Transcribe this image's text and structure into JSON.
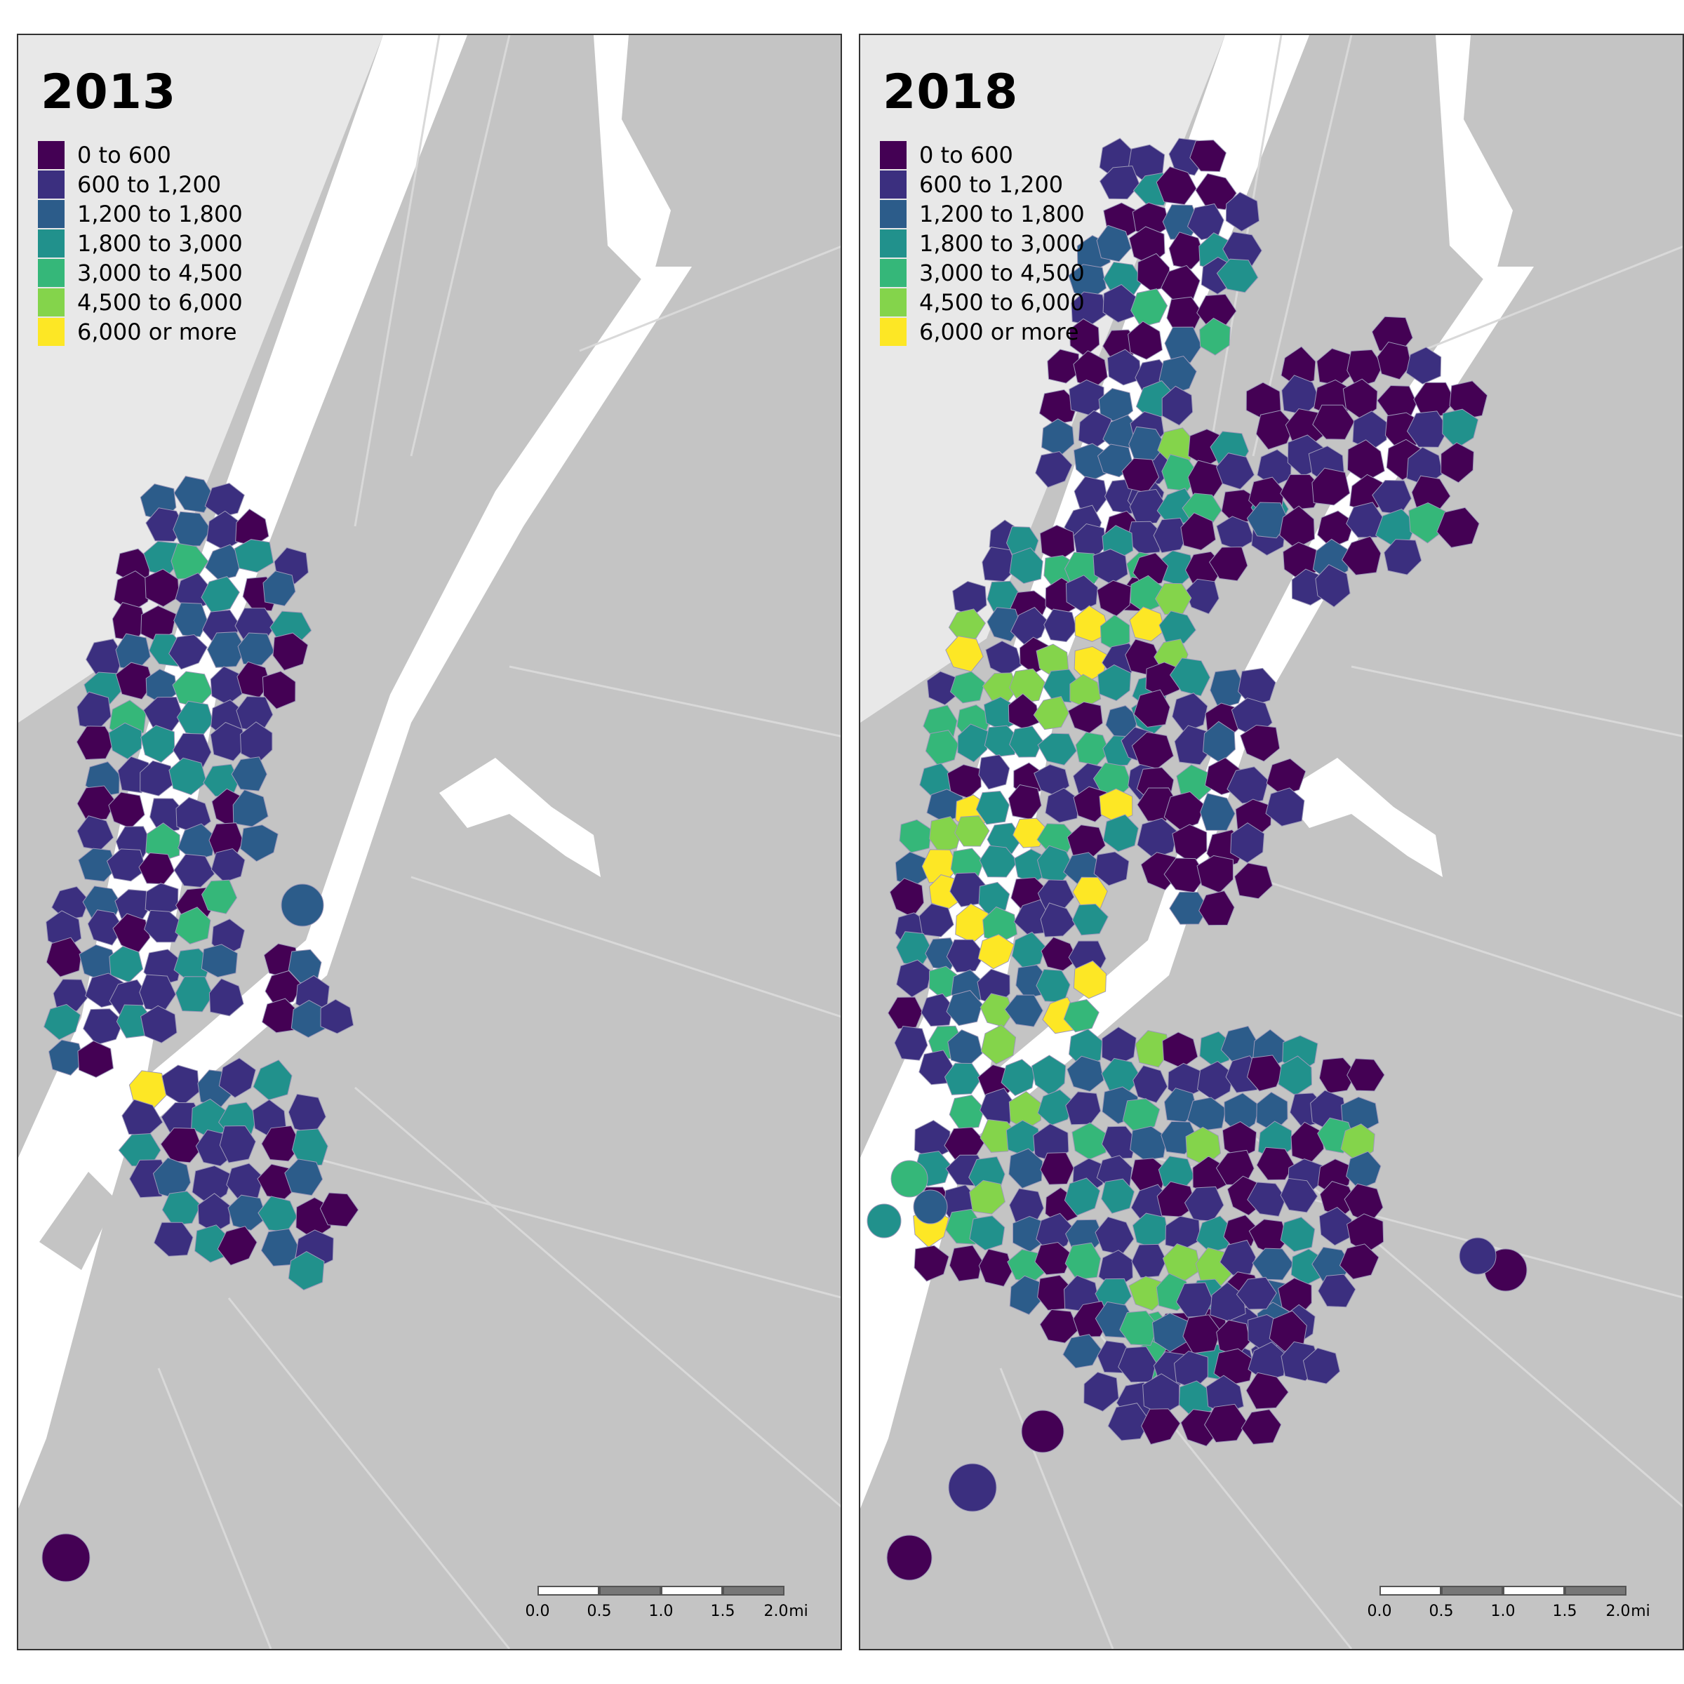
{
  "panels": [
    {
      "year": "2013"
    },
    {
      "year": "2018"
    }
  ],
  "legend": [
    {
      "label": "0 to 600",
      "color": "#440154"
    },
    {
      "label": "600 to 1,200",
      "color": "#3b2f7f"
    },
    {
      "label": "1,200 to 1,800",
      "color": "#2c5c8a"
    },
    {
      "label": "1,800 to 3,000",
      "color": "#21918c"
    },
    {
      "label": "3,000 to 4,500",
      "color": "#35b779"
    },
    {
      "label": "4,500 to 6,000",
      "color": "#84d44b"
    },
    {
      "label": "6,000 or more",
      "color": "#fde725"
    }
  ],
  "scale": {
    "ticks": [
      "0.0",
      "0.5",
      "1.0",
      "1.5",
      "2.0"
    ],
    "unit": "mi"
  },
  "colors": {
    "land": "#c4c4c4",
    "water": "#ffffff",
    "nj_land": "#e8e8e8",
    "roads": "#d9d9d9"
  }
}
